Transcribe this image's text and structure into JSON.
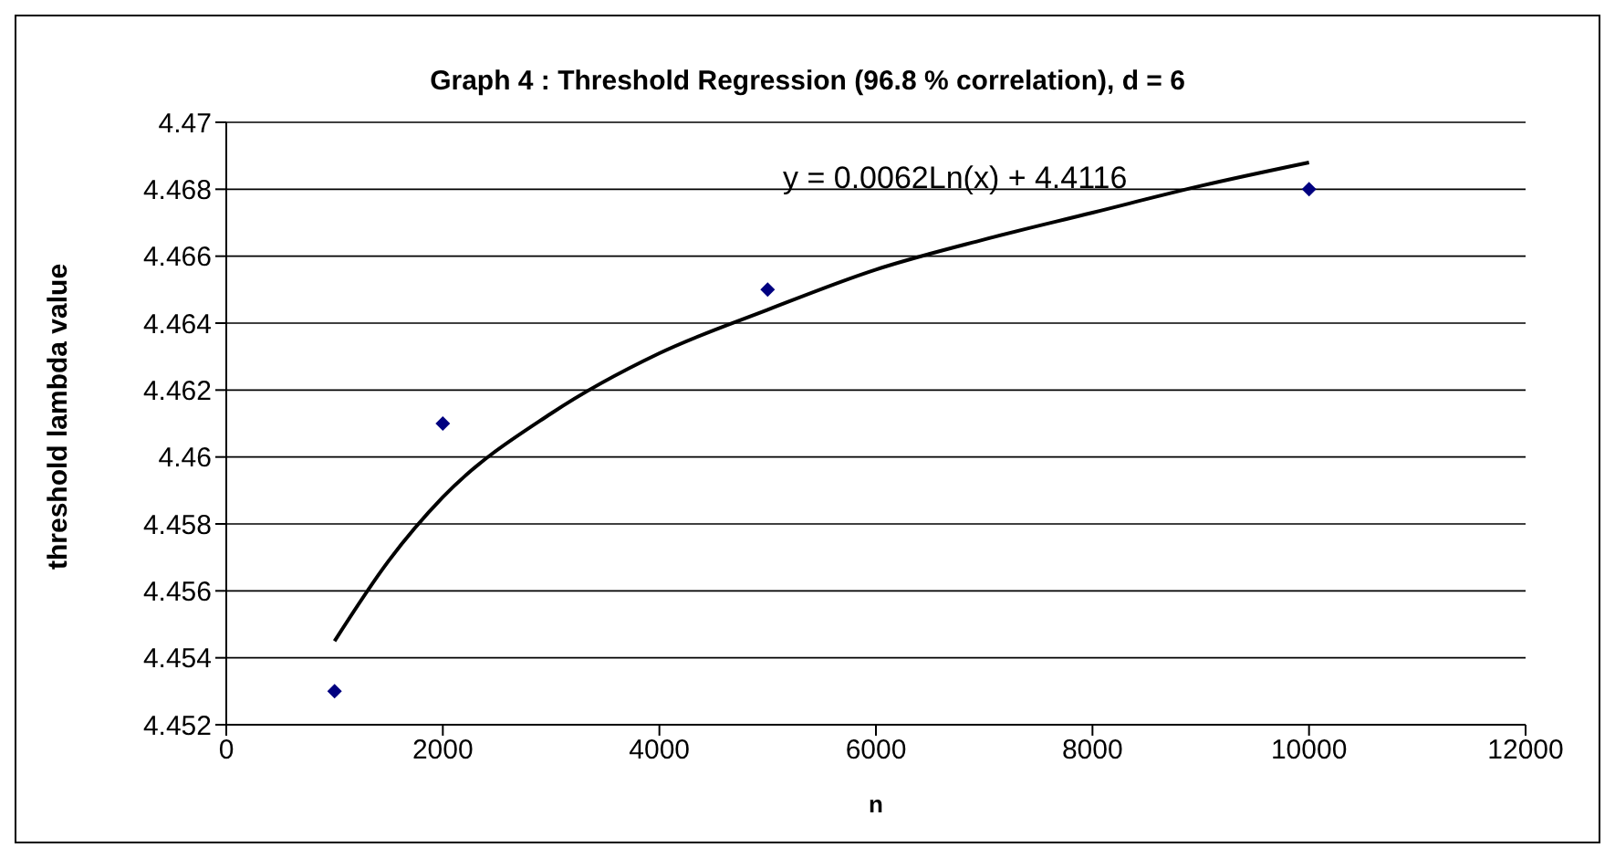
{
  "chart_data": {
    "type": "scatter",
    "title": "Graph 4 : Threshold Regression (96.8 % correlation), d = 6",
    "xlabel": "n",
    "ylabel": "threshold lambda value",
    "annotations": [
      "y = 0.0062Ln(x) + 4.4116"
    ],
    "xlim": [
      0,
      12000
    ],
    "xticks": [
      0,
      2000,
      4000,
      6000,
      8000,
      10000,
      12000
    ],
    "ylim": [
      4.452,
      4.47
    ],
    "yticks": [
      4.452,
      4.454,
      4.456,
      4.458,
      4.46,
      4.462,
      4.464,
      4.466,
      4.468,
      4.47
    ],
    "grid": "y",
    "series": [
      {
        "color": "#000080",
        "marker": "diamond",
        "x": [
          1000,
          2000,
          5000,
          10000
        ],
        "values": [
          4.453,
          4.461,
          4.465,
          4.468
        ]
      },
      {
        "type": "line",
        "color": "#000000",
        "marker": "none",
        "line_style": "solid",
        "x": [
          1000,
          1500,
          2000,
          3000,
          4000,
          5000,
          6000,
          7000,
          8000,
          9000,
          10000
        ],
        "values": [
          4.4545,
          4.4569,
          4.4588,
          4.4613,
          4.4631,
          4.4644,
          4.4656,
          4.4665,
          4.4673,
          4.4681,
          4.4688
        ]
      }
    ]
  }
}
